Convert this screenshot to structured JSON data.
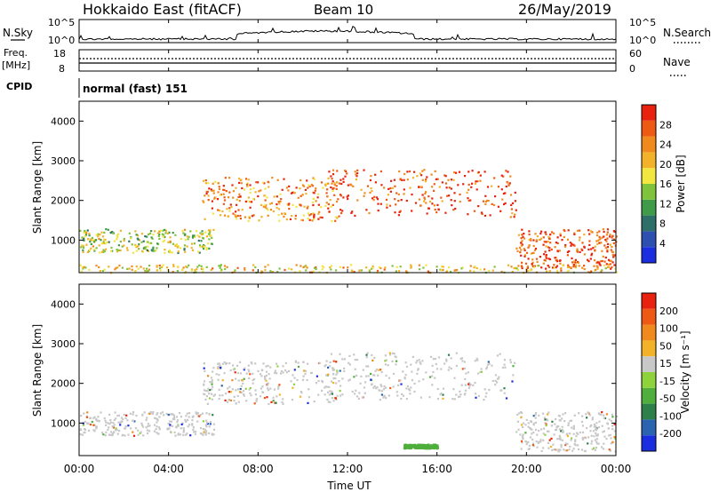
{
  "header": {
    "title": "Hokkaido East (fitACF)",
    "beam": "Beam 10",
    "date": "26/May/2019"
  },
  "noise_panel": {
    "left_label": "N.Sky",
    "left_ticks": [
      "10^5",
      "10^0"
    ],
    "right_ticks": [
      "10^5",
      "10^0"
    ],
    "right_label": "N.Search",
    "right_label_style": "dotted"
  },
  "freq_panel": {
    "left_label_line1": "Freq.",
    "left_label_line2": "[MHz]",
    "left_ticks": [
      "18",
      "8"
    ],
    "right_ticks": [
      "60",
      "0"
    ],
    "right_label": "Nave",
    "right_label_style": "dotted"
  },
  "cpid_panel": {
    "label": "CPID",
    "value": "normal (fast) 151"
  },
  "x_axis": {
    "label": "Time UT",
    "ticks": [
      "00:00",
      "04:00",
      "08:00",
      "12:00",
      "16:00",
      "20:00",
      "00:00"
    ]
  },
  "chart_data": [
    {
      "type": "heatmap",
      "title": "",
      "xlabel": "Time UT",
      "ylabel": "Slant Range [km]",
      "x_ticks": [
        "00:00",
        "04:00",
        "08:00",
        "12:00",
        "16:00",
        "20:00",
        "00:00"
      ],
      "y_ticks": [
        1000,
        2000,
        3000,
        4000
      ],
      "xlim_hours": [
        0,
        24
      ],
      "ylim_km": [
        180,
        4500
      ],
      "colorbar": {
        "label": "Power [dB]",
        "ticks": [
          4,
          8,
          12,
          16,
          20,
          24,
          28
        ],
        "range": [
          0,
          32
        ],
        "colors": [
          "#1a2ee0",
          "#2d4fb0",
          "#2f6f6a",
          "#3f9a4a",
          "#7fc23c",
          "#f2e641",
          "#f2b22a",
          "#f08a1e",
          "#ee5a14",
          "#e8220e"
        ]
      },
      "features": [
        {
          "name": "morning band",
          "t_start": 0.0,
          "t_end": 6.0,
          "range_low_km": 700,
          "range_high_km": 1300,
          "power_db": 16
        },
        {
          "name": "arc 1",
          "t_start": 5.5,
          "t_end": 11.5,
          "range_low_km": 1500,
          "range_high_km": 2600,
          "power_db": 24
        },
        {
          "name": "arc 2",
          "t_start": 11.0,
          "t_end": 19.5,
          "range_low_km": 1600,
          "range_high_km": 2800,
          "power_db": 28
        },
        {
          "name": "evening near-range",
          "t_start": 19.5,
          "t_end": 24.0,
          "range_low_km": 300,
          "range_high_km": 1300,
          "power_db": 28
        },
        {
          "name": "ground scatter floor",
          "t_start": 0.0,
          "t_end": 24.0,
          "range_low_km": 200,
          "range_high_km": 400,
          "power_db": 20
        }
      ]
    },
    {
      "type": "heatmap",
      "title": "",
      "xlabel": "Time UT",
      "ylabel": "Slant Range [km]",
      "x_ticks": [
        "00:00",
        "04:00",
        "08:00",
        "12:00",
        "16:00",
        "20:00",
        "00:00"
      ],
      "y_ticks": [
        1000,
        2000,
        3000,
        4000
      ],
      "xlim_hours": [
        0,
        24
      ],
      "ylim_km": [
        180,
        4500
      ],
      "colorbar": {
        "label": "Velocity [m s⁻¹]",
        "ticks": [
          200,
          100,
          50,
          15,
          -15,
          -50,
          -100,
          -200
        ],
        "colors": [
          "#1a2ee0",
          "#2a63b0",
          "#2f7f4a",
          "#4fae3c",
          "#8fd33c",
          "#c8c8c8",
          "#f2b22a",
          "#f08a1e",
          "#ee5a14",
          "#e8220e"
        ]
      },
      "features": [
        {
          "name": "morning band",
          "t_start": 0.0,
          "t_end": 6.0,
          "range_low_km": 700,
          "range_high_km": 1300,
          "velocity_ms": 0
        },
        {
          "name": "arc 1",
          "t_start": 5.5,
          "t_end": 11.5,
          "range_low_km": 1500,
          "range_high_km": 2600,
          "velocity_ms": 0
        },
        {
          "name": "arc 2",
          "t_start": 11.0,
          "t_end": 19.5,
          "range_low_km": 1600,
          "range_high_km": 2800,
          "velocity_ms": 0
        },
        {
          "name": "evening near-range",
          "t_start": 19.5,
          "t_end": 24.0,
          "range_low_km": 300,
          "range_high_km": 1300,
          "velocity_ms": 0
        },
        {
          "name": "green patch",
          "t_start": 14.5,
          "t_end": 16.0,
          "range_low_km": 380,
          "range_high_km": 480,
          "velocity_ms": 50
        }
      ]
    }
  ]
}
